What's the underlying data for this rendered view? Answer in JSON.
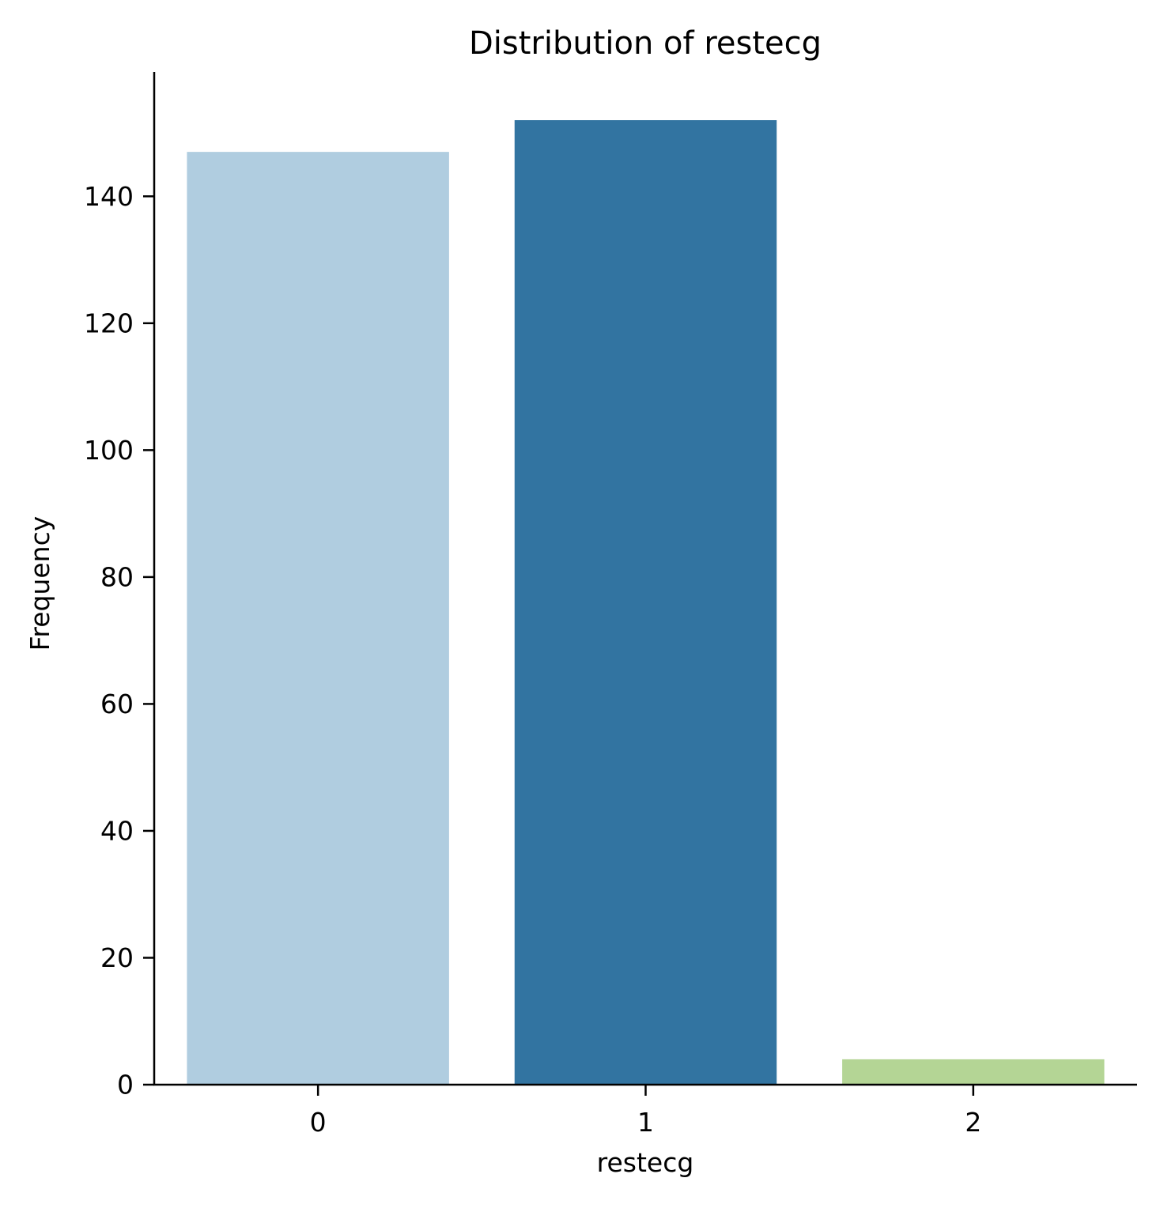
{
  "chart_data": {
    "type": "bar",
    "title": "Distribution of restecg",
    "xlabel": "restecg",
    "ylabel": "Frequency",
    "categories": [
      "0",
      "1",
      "2"
    ],
    "values": [
      147,
      152,
      4
    ],
    "colors": [
      "#b0cde0",
      "#3274a1",
      "#b4d595"
    ],
    "ylim": [
      0,
      159.6
    ],
    "yticks": [
      0,
      20,
      40,
      60,
      80,
      100,
      120,
      140
    ],
    "ytick_labels": [
      "0",
      "20",
      "40",
      "60",
      "80",
      "100",
      "120",
      "140"
    ],
    "grid": false,
    "legend": "none"
  }
}
